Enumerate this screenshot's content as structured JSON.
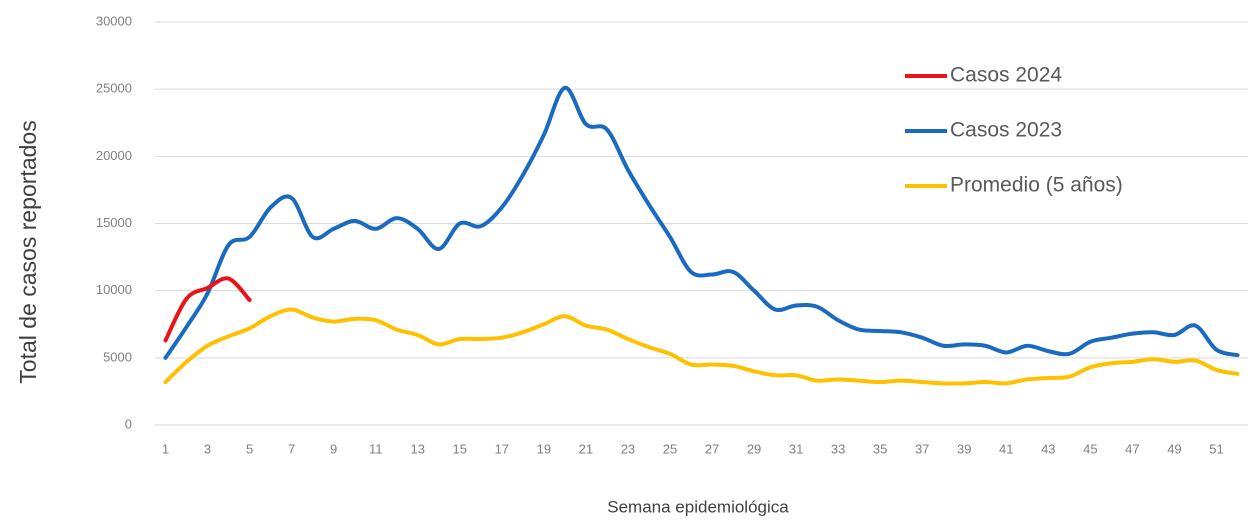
{
  "chart_data": {
    "type": "line",
    "y_label": "Total de casos reportados",
    "x_label": "Semana epidemiológica",
    "categories": [
      "1",
      null,
      "3",
      null,
      "5",
      null,
      "7",
      null,
      "9",
      null,
      "11",
      null,
      "13",
      null,
      "15",
      null,
      "17",
      null,
      "19",
      null,
      "21",
      null,
      "23",
      null,
      "25",
      null,
      "27",
      null,
      "29",
      null,
      "31",
      null,
      "33",
      null,
      "35",
      null,
      "37",
      null,
      "39",
      null,
      "41",
      null,
      "43",
      null,
      "45",
      null,
      "47",
      null,
      "49",
      null,
      "51",
      null
    ],
    "series": [
      {
        "name": "Casos 2024",
        "color": "#e8141a",
        "values": [
          6300,
          9400,
          10200,
          10900,
          9300,
          null,
          null,
          null,
          null,
          null,
          null,
          null,
          null,
          null,
          null,
          null,
          null,
          null,
          null,
          null,
          null,
          null,
          null,
          null,
          null,
          null,
          null,
          null,
          null,
          null,
          null,
          null,
          null,
          null,
          null,
          null,
          null,
          null,
          null,
          null,
          null,
          null,
          null,
          null,
          null,
          null,
          null,
          null,
          null,
          null,
          null,
          null
        ]
      },
      {
        "name": "Casos 2023",
        "color": "#1a6ac0",
        "values": [
          5000,
          7300,
          9800,
          13400,
          14000,
          16200,
          16900,
          14000,
          14600,
          15200,
          14600,
          15400,
          14600,
          13100,
          15000,
          14800,
          16200,
          18600,
          21600,
          25100,
          22400,
          22000,
          19000,
          16400,
          14000,
          11400,
          11200,
          11400,
          10000,
          8600,
          8900,
          8800,
          7800,
          7100,
          7000,
          6900,
          6500,
          5900,
          6000,
          5900,
          5400,
          5900,
          5500,
          5300,
          6200,
          6500,
          6800,
          6900,
          6700,
          7400,
          5600,
          5200
        ]
      },
      {
        "name": "Promedio (5 años)",
        "color": "#ffc000",
        "values": [
          3200,
          4700,
          5900,
          6600,
          7200,
          8100,
          8600,
          8000,
          7700,
          7900,
          7800,
          7100,
          6700,
          6000,
          6400,
          6400,
          6500,
          6900,
          7500,
          8100,
          7400,
          7100,
          6400,
          5800,
          5300,
          4500,
          4500,
          4400,
          4000,
          3700,
          3700,
          3300,
          3400,
          3300,
          3200,
          3300,
          3200,
          3100,
          3100,
          3200,
          3100,
          3400,
          3500,
          3600,
          4300,
          4600,
          4700,
          4900,
          4700,
          4800,
          4100,
          3800
        ]
      }
    ],
    "ylim": [
      0,
      30000
    ],
    "yticks": [
      0,
      5000,
      10000,
      15000,
      20000,
      25000,
      30000
    ],
    "grid": true,
    "smooth": true,
    "legend": "upper right"
  }
}
